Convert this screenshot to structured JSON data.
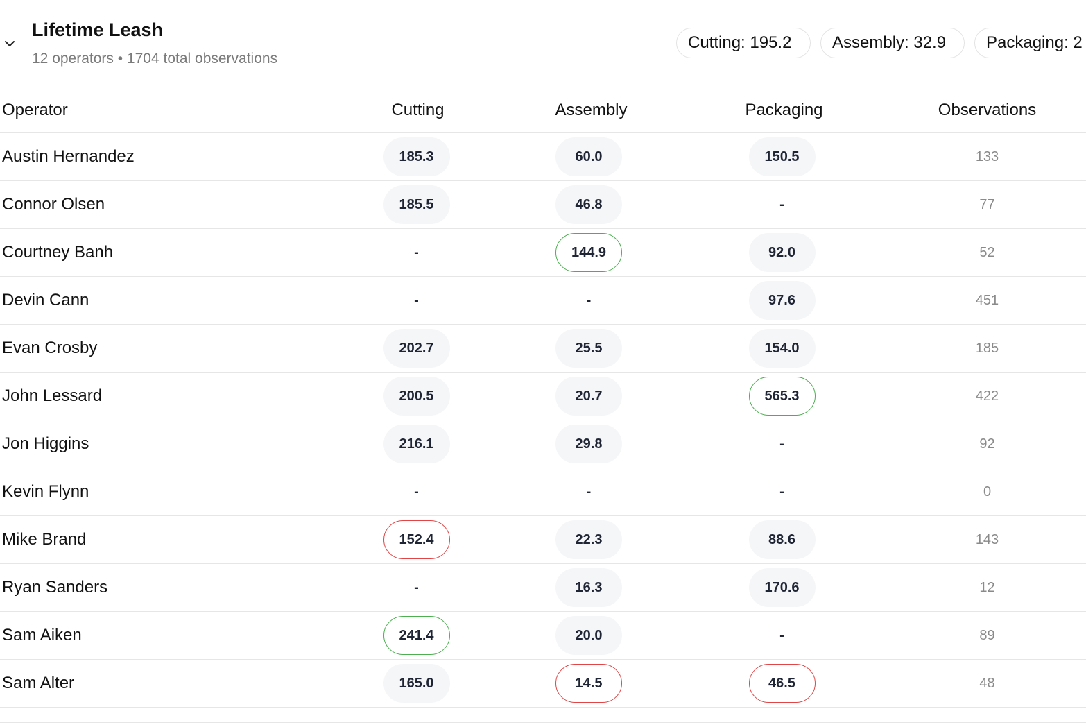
{
  "header": {
    "title": "Lifetime Leash",
    "subtitle": "12 operators • 1704 total observations",
    "toggle_icon": "chevron-down-icon",
    "chips": [
      {
        "label": "Cutting: 195.2"
      },
      {
        "label": "Assembly: 32.9"
      },
      {
        "label": "Packaging: 2"
      }
    ]
  },
  "table": {
    "headers": {
      "operator": "Operator",
      "cutting": "Cutting",
      "assembly": "Assembly",
      "packaging": "Packaging",
      "observations": "Observations"
    },
    "rows": [
      {
        "name": "Austin Hernandez",
        "cutting": "185.3",
        "cutting_status": "normal",
        "assembly": "60.0",
        "assembly_status": "normal",
        "packaging": "150.5",
        "packaging_status": "normal",
        "observations": "133"
      },
      {
        "name": "Connor Olsen",
        "cutting": "185.5",
        "cutting_status": "normal",
        "assembly": "46.8",
        "assembly_status": "normal",
        "packaging": "-",
        "packaging_status": "empty",
        "observations": "77"
      },
      {
        "name": "Courtney Banh",
        "cutting": "-",
        "cutting_status": "empty",
        "assembly": "144.9",
        "assembly_status": "good",
        "packaging": "92.0",
        "packaging_status": "normal",
        "observations": "52"
      },
      {
        "name": "Devin Cann",
        "cutting": "-",
        "cutting_status": "empty",
        "assembly": "-",
        "assembly_status": "empty",
        "packaging": "97.6",
        "packaging_status": "normal",
        "observations": "451"
      },
      {
        "name": "Evan Crosby",
        "cutting": "202.7",
        "cutting_status": "normal",
        "assembly": "25.5",
        "assembly_status": "normal",
        "packaging": "154.0",
        "packaging_status": "normal",
        "observations": "185"
      },
      {
        "name": "John Lessard",
        "cutting": "200.5",
        "cutting_status": "normal",
        "assembly": "20.7",
        "assembly_status": "normal",
        "packaging": "565.3",
        "packaging_status": "good",
        "observations": "422"
      },
      {
        "name": "Jon Higgins",
        "cutting": "216.1",
        "cutting_status": "normal",
        "assembly": "29.8",
        "assembly_status": "normal",
        "packaging": "-",
        "packaging_status": "empty",
        "observations": "92"
      },
      {
        "name": "Kevin Flynn",
        "cutting": "-",
        "cutting_status": "empty",
        "assembly": "-",
        "assembly_status": "empty",
        "packaging": "-",
        "packaging_status": "empty",
        "observations": "0"
      },
      {
        "name": "Mike Brand",
        "cutting": "152.4",
        "cutting_status": "bad",
        "assembly": "22.3",
        "assembly_status": "normal",
        "packaging": "88.6",
        "packaging_status": "normal",
        "observations": "143"
      },
      {
        "name": "Ryan Sanders",
        "cutting": "-",
        "cutting_status": "empty",
        "assembly": "16.3",
        "assembly_status": "normal",
        "packaging": "170.6",
        "packaging_status": "normal",
        "observations": "12"
      },
      {
        "name": "Sam Aiken",
        "cutting": "241.4",
        "cutting_status": "good",
        "assembly": "20.0",
        "assembly_status": "normal",
        "packaging": "-",
        "packaging_status": "empty",
        "observations": "89"
      },
      {
        "name": "Sam Alter",
        "cutting": "165.0",
        "cutting_status": "normal",
        "assembly": "14.5",
        "assembly_status": "bad",
        "packaging": "46.5",
        "packaging_status": "bad",
        "observations": "48"
      }
    ]
  },
  "colors": {
    "good_border": "#4caf50",
    "bad_border": "#e04646",
    "pill_background": "#f5f6f8",
    "value_text": "#1f2535",
    "muted_text": "#7a7a7a"
  }
}
